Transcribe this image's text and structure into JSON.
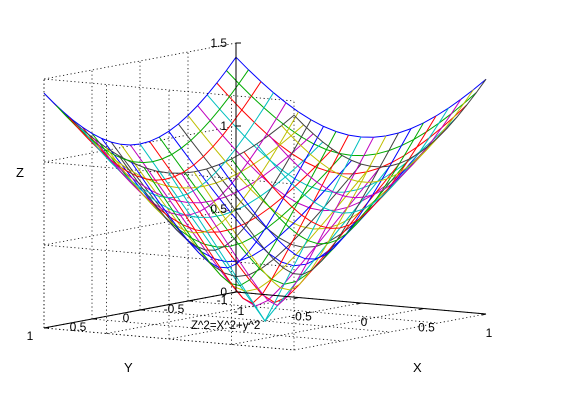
{
  "chart_data": {
    "type": "line",
    "title": "",
    "xlabel": "X",
    "ylabel": "Y",
    "zlabel": "Z",
    "annotation": "Z^2=X^2+y^2",
    "xlim": [
      -1,
      1
    ],
    "ylim": [
      -1,
      1
    ],
    "zlim": [
      0,
      1.5
    ],
    "x_ticks": [
      "-1",
      "-0.5",
      "0",
      "0.5",
      "1"
    ],
    "y_ticks": [
      "1",
      "0.5",
      "0",
      "-0.5",
      "-1"
    ],
    "z_ticks": [
      "0",
      "0.5",
      "1",
      "1.5"
    ],
    "grid": true,
    "x": [
      -1,
      -0.9,
      -0.8,
      -0.7,
      -0.6,
      -0.5,
      -0.4,
      -0.3,
      -0.2,
      -0.1,
      0,
      0.1,
      0.2,
      0.3,
      0.4,
      0.5,
      0.6,
      0.7,
      0.8,
      0.9,
      1
    ],
    "y": [
      -1,
      -0.9,
      -0.8,
      -0.7,
      -0.6,
      -0.5,
      -0.4,
      -0.3,
      -0.2,
      -0.1,
      0,
      0.1,
      0.2,
      0.3,
      0.4,
      0.5,
      0.6,
      0.7,
      0.8,
      0.9,
      1
    ],
    "z_formula": "Z = sqrt(X^2 + Y^2)",
    "colors": [
      "#0000ff",
      "#00aa00",
      "#ff0000",
      "#00bfbf",
      "#bf00bf",
      "#bfbf00",
      "#404040"
    ]
  }
}
